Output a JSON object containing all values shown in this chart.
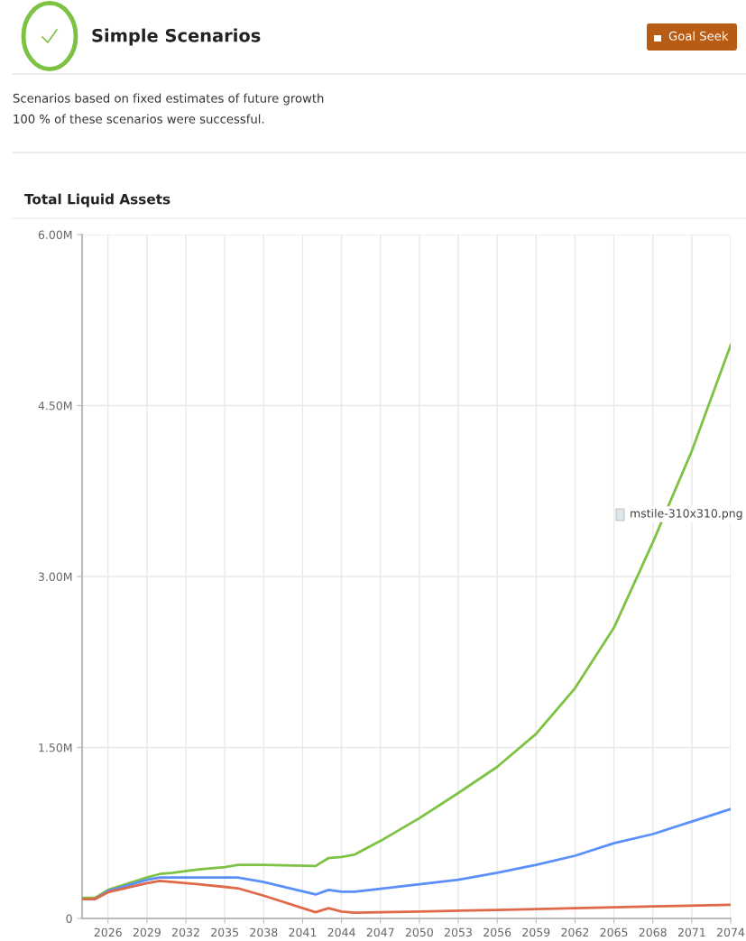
{
  "chart_data": {
    "type": "line",
    "title": "Total Liquid Assets",
    "annotations": [
      "Simple Scenarios",
      "Goal Seek",
      "Scenarios based on fixed estimates of future growth",
      "100 % of these scenarios were successful.",
      "mstile-310x310.png"
    ],
    "series": [
      {
        "color": "#7dc242",
        "x": [
          2024,
          2025,
          2026,
          2029,
          2030,
          2031,
          2033,
          2035,
          2036,
          2038,
          2042,
          2043,
          2044,
          2045,
          2047,
          2050,
          2053,
          2056,
          2059,
          2062,
          2065,
          2068,
          2071,
          2074
        ],
        "values": [
          180000,
          180000,
          250000,
          360000,
          390000,
          400000,
          430000,
          450000,
          470000,
          470000,
          460000,
          530000,
          540000,
          560000,
          680000,
          880000,
          1100000,
          1330000,
          1620000,
          2020000,
          2550000,
          3300000,
          4100000,
          5030000
        ]
      },
      {
        "color": "#5b8ff9",
        "x": [
          2025,
          2026,
          2029,
          2030,
          2036,
          2038,
          2042,
          2043,
          2044,
          2045,
          2047,
          2050,
          2053,
          2056,
          2059,
          2062,
          2065,
          2068,
          2071,
          2074
        ],
        "values": [
          170000,
          240000,
          340000,
          360000,
          360000,
          320000,
          210000,
          250000,
          235000,
          235000,
          260000,
          300000,
          340000,
          400000,
          470000,
          550000,
          660000,
          740000,
          850000,
          960000
        ]
      },
      {
        "color": "#e0694a",
        "x": [
          2024,
          2025,
          2026,
          2029,
          2030,
          2033,
          2036,
          2038,
          2042,
          2043,
          2044,
          2045,
          2050,
          2056,
          2062,
          2068,
          2074
        ],
        "values": [
          170000,
          170000,
          230000,
          310000,
          330000,
          300000,
          265000,
          200000,
          55000,
          90000,
          60000,
          50000,
          60000,
          75000,
          90000,
          105000,
          120000
        ]
      }
    ],
    "xlim": [
      2024,
      2074
    ],
    "xticks": [
      2026,
      2029,
      2032,
      2035,
      2038,
      2041,
      2044,
      2047,
      2050,
      2053,
      2056,
      2059,
      2062,
      2065,
      2068,
      2071,
      2074
    ],
    "ylim": [
      0,
      6000000
    ],
    "yticks": [
      0,
      {
        "value": 1500000,
        "label": "1.50M"
      },
      {
        "value": 3000000,
        "label": "3.00M"
      },
      {
        "value": 4500000,
        "label": "4.50M"
      },
      {
        "value": 6000000,
        "label": "6.00M"
      }
    ],
    "grid": true,
    "marker": "none"
  }
}
